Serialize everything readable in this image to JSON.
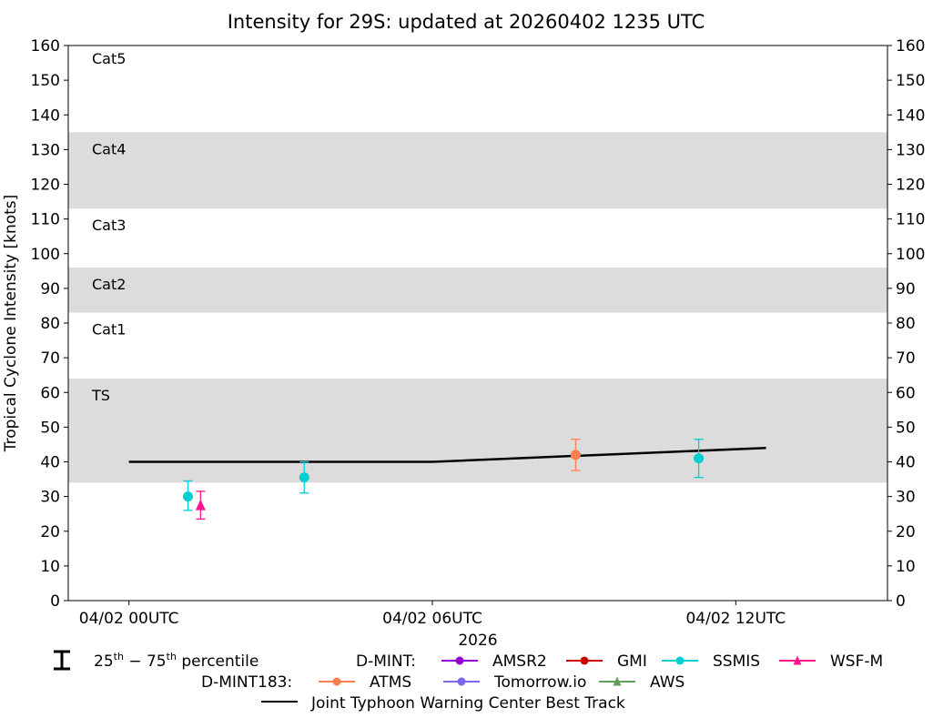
{
  "chart_data": {
    "type": "scatter",
    "title": "Intensity for 29S: updated at 20260402 1235 UTC",
    "xlabel": "2026",
    "ylabel": "Tropical Cyclone Intensity [knots]",
    "xlim": [
      "2026-04-01 22:48",
      "2026-04-02 15:00"
    ],
    "ylim": [
      0,
      160
    ],
    "yticks": [
      0,
      10,
      20,
      30,
      40,
      50,
      60,
      70,
      80,
      90,
      100,
      110,
      120,
      130,
      140,
      150,
      160
    ],
    "xticks": [
      {
        "time": "2026-04-02 00:00",
        "label": "04/02 00UTC"
      },
      {
        "time": "2026-04-02 06:00",
        "label": "04/02 06UTC"
      },
      {
        "time": "2026-04-02 12:00",
        "label": "04/02 12UTC"
      }
    ],
    "grid": false,
    "category_bands": [
      {
        "label": "TS",
        "min": 34,
        "max": 64,
        "shaded": true
      },
      {
        "label": "Cat1",
        "min": 64,
        "max": 83,
        "shaded": false
      },
      {
        "label": "Cat2",
        "min": 83,
        "max": 96,
        "shaded": true
      },
      {
        "label": "Cat3",
        "min": 96,
        "max": 113,
        "shaded": false
      },
      {
        "label": "Cat4",
        "min": 113,
        "max": 135,
        "shaded": true
      },
      {
        "label": "Cat5",
        "min": 135,
        "max": 160,
        "shaded": false
      }
    ],
    "band_color": "#dcdcdc",
    "best_track": {
      "name": "Joint Typhoon Warning Center Best Track",
      "color": "#000000",
      "points": [
        {
          "time": "2026-04-02 00:00",
          "value": 40
        },
        {
          "time": "2026-04-02 06:00",
          "value": 40
        },
        {
          "time": "2026-04-02 12:36",
          "value": 44
        }
      ]
    },
    "series": [
      {
        "name": "AMSR2",
        "color": "#9400d3",
        "marker": "circle",
        "points": []
      },
      {
        "name": "GMI",
        "color": "#cc0000",
        "marker": "circle",
        "points": []
      },
      {
        "name": "SSMIS",
        "color": "#00ced1",
        "marker": "circle",
        "points": [
          {
            "time": "2026-04-02 01:10",
            "value": 30,
            "p25": 26,
            "p75": 34.5
          },
          {
            "time": "2026-04-02 03:28",
            "value": 35.5,
            "p25": 31,
            "p75": 40
          },
          {
            "time": "2026-04-02 11:16",
            "value": 41,
            "p25": 35.5,
            "p75": 46.5
          }
        ]
      },
      {
        "name": "WSF-M",
        "color": "#ff1493",
        "marker": "triangle",
        "points": [
          {
            "time": "2026-04-02 01:25",
            "value": 27.5,
            "p25": 23.5,
            "p75": 31.5
          }
        ]
      },
      {
        "name": "ATMS",
        "color": "#ff7f50",
        "marker": "circle",
        "points": [
          {
            "time": "2026-04-02 08:50",
            "value": 42,
            "p25": 37.5,
            "p75": 46.5
          }
        ]
      },
      {
        "name": "Tomorrow.io",
        "color": "#7b68ee",
        "marker": "circle",
        "points": []
      },
      {
        "name": "AWS",
        "color": "#5f9e5f",
        "marker": "triangle",
        "points": []
      }
    ],
    "legend": {
      "placement": "bottom",
      "percentile_label_a": "25",
      "percentile_sup_a": "th",
      "percentile_dash": " − 75",
      "percentile_sup_b": "th",
      "percentile_label_b": " percentile",
      "group1_label": "D-MINT:",
      "group1": [
        "AMSR2",
        "GMI",
        "SSMIS",
        "WSF-M"
      ],
      "group2_label": "D-MINT183:",
      "group2": [
        "ATMS",
        "Tomorrow.io",
        "AWS"
      ]
    }
  }
}
